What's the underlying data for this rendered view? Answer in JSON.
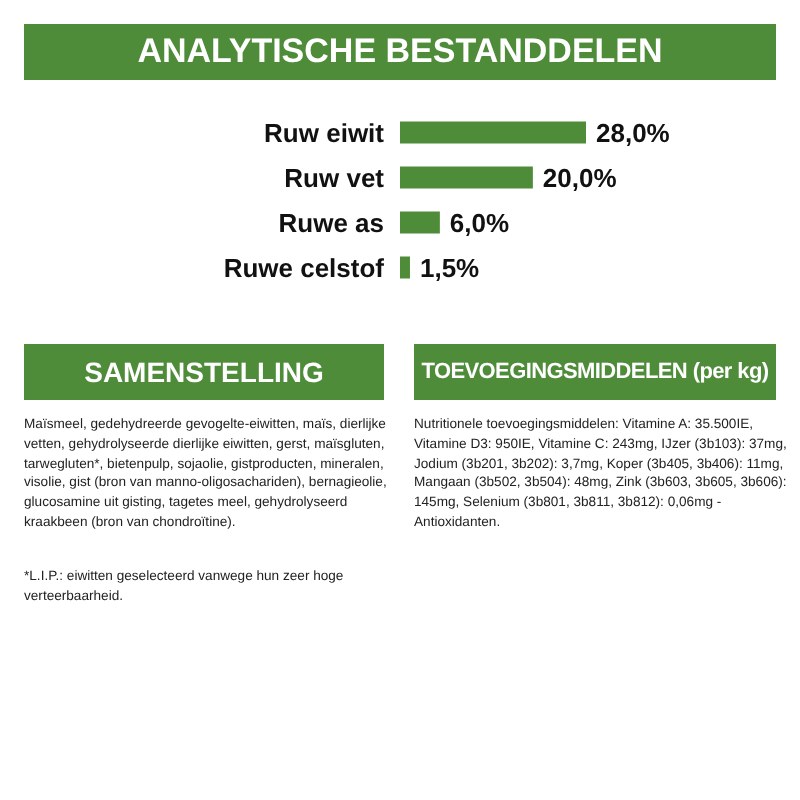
{
  "chart_data": {
    "type": "bar",
    "orientation": "horizontal",
    "title": "ANALYTISCHE BESTANDDELEN",
    "categories": [
      "Ruw eiwit",
      "Ruw vet",
      "Ruwe as",
      "Ruwe celstof"
    ],
    "values": [
      28.0,
      20.0,
      6.0,
      1.5
    ],
    "value_labels": [
      "28,0%",
      "20,0%",
      "6,0%",
      "1,5%"
    ],
    "color": "#4e8c39",
    "annotations": [
      "SAMENSTELLING",
      "TOEVOEGINGSMIDDELEN (per kg)",
      "Maïsmeel, gedehydreerde gevogelte-eiwitten, maïs, dierlijke vetten, gehydrolyseerde dierlijke eiwitten, gerst, maïsgluten, tarwegluten*, bietenpulp, sojaolie, gistproducten, mineralen, visolie, gist (bron van manno-oligosachariden), bernagieolie, glucosamine uit gisting, tagetes meel, gehydrolyseerd kraakbeen (bron van chondroïtine).",
      "*L.I.P.: eiwitten geselecteerd vanwege hun zeer hoge verteerbaarheid.",
      "Nutritionele toevoegingsmiddelen: Vitamine A: 35.500IE, Vitamine D3: 950IE, Vitamine C: 243mg, IJzer (3b103): 37mg, Jodium (3b201, 3b202): 3,7mg, Koper (3b405, 3b406): 11mg, Mangaan (3b502, 3b504): 48mg, Zink (3b603, 3b605, 3b606): 145mg, Selenium (3b801, 3b811, 3b812): 0,06mg - Antioxidanten."
    ]
  }
}
